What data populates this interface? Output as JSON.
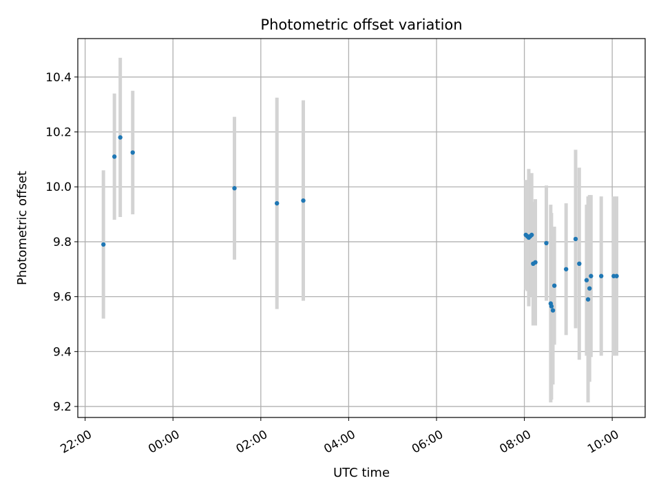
{
  "chart_data": {
    "type": "scatter",
    "title": "Photometric offset variation",
    "xlabel": "UTC time",
    "ylabel": "Photometric offset",
    "x_unit": "UTC hours",
    "xlim": [
      "21:50",
      "10:45"
    ],
    "ylim": [
      9.16,
      10.54
    ],
    "x_ticks": [
      "22:00",
      "00:00",
      "02:00",
      "04:00",
      "06:00",
      "08:00",
      "10:00"
    ],
    "y_ticks": [
      "9.2",
      "9.4",
      "9.6",
      "9.8",
      "10.0",
      "10.2",
      "10.4"
    ],
    "grid": true,
    "colors": {
      "point": "#1f77b4",
      "errorbar": "#d3d3d3",
      "grid": "#b0b0b0"
    },
    "points": [
      {
        "x": "22:25",
        "y": 9.79,
        "err": 0.27
      },
      {
        "x": "22:40",
        "y": 10.11,
        "err": 0.23
      },
      {
        "x": "22:48",
        "y": 10.18,
        "err": 0.29
      },
      {
        "x": "23:05",
        "y": 10.125,
        "err": 0.225
      },
      {
        "x": "01:24",
        "y": 9.995,
        "err": 0.26
      },
      {
        "x": "02:22",
        "y": 9.94,
        "err": 0.385
      },
      {
        "x": "02:58",
        "y": 9.95,
        "err": 0.365
      },
      {
        "x": "08:02",
        "y": 9.825,
        "err": 0.2
      },
      {
        "x": "08:04",
        "y": 9.82,
        "err": 0.2
      },
      {
        "x": "08:06",
        "y": 9.815,
        "err": 0.25
      },
      {
        "x": "08:08",
        "y": 9.82,
        "err": 0.2
      },
      {
        "x": "08:10",
        "y": 9.825,
        "err": 0.225
      },
      {
        "x": "08:12",
        "y": 9.72,
        "err": 0.225
      },
      {
        "x": "08:15",
        "y": 9.725,
        "err": 0.23
      },
      {
        "x": "08:30",
        "y": 9.795,
        "err": 0.21
      },
      {
        "x": "08:36",
        "y": 9.575,
        "err": 0.36
      },
      {
        "x": "08:37",
        "y": 9.565,
        "err": 0.34
      },
      {
        "x": "08:39",
        "y": 9.55,
        "err": 0.27
      },
      {
        "x": "08:41",
        "y": 9.64,
        "err": 0.215
      },
      {
        "x": "08:57",
        "y": 9.7,
        "err": 0.24
      },
      {
        "x": "09:10",
        "y": 9.81,
        "err": 0.325
      },
      {
        "x": "09:15",
        "y": 9.72,
        "err": 0.35
      },
      {
        "x": "09:25",
        "y": 9.66,
        "err": 0.275
      },
      {
        "x": "09:27",
        "y": 9.59,
        "err": 0.375
      },
      {
        "x": "09:29",
        "y": 9.63,
        "err": 0.34
      },
      {
        "x": "09:31",
        "y": 9.675,
        "err": 0.295
      },
      {
        "x": "09:45",
        "y": 9.675,
        "err": 0.29
      },
      {
        "x": "10:02",
        "y": 9.675,
        "err": 0.29
      },
      {
        "x": "10:06",
        "y": 9.675,
        "err": 0.29
      }
    ]
  }
}
